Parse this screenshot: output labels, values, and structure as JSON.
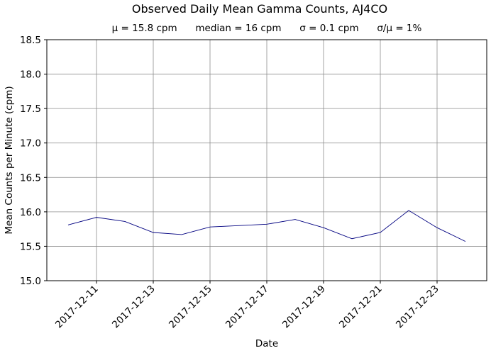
{
  "chart_data": {
    "type": "line",
    "title": "Observed Daily Mean Gamma Counts, AJ4CO",
    "subtitle": "μ = 15.8 cpm      median = 16 cpm      σ = 0.1 cpm      σ/μ = 1%",
    "xlabel": "Date",
    "ylabel": "Mean Counts per Minute (cpm)",
    "xlim": [
      "2017-12-09T06:00",
      "2017-12-24T18:00"
    ],
    "ylim": [
      15.0,
      18.5
    ],
    "yticks": [
      "15.0",
      "15.5",
      "16.0",
      "16.5",
      "17.0",
      "17.5",
      "18.0",
      "18.5"
    ],
    "xticks": [
      "2017-12-11",
      "2017-12-13",
      "2017-12-15",
      "2017-12-17",
      "2017-12-19",
      "2017-12-21",
      "2017-12-23"
    ],
    "grid": true,
    "line_color": "#000080",
    "series": [
      {
        "x": [
          "2017-12-10",
          "2017-12-11",
          "2017-12-12",
          "2017-12-13",
          "2017-12-14",
          "2017-12-15",
          "2017-12-16",
          "2017-12-17",
          "2017-12-18",
          "2017-12-19",
          "2017-12-20",
          "2017-12-21",
          "2017-12-22",
          "2017-12-23",
          "2017-12-24"
        ],
        "values": [
          15.81,
          15.92,
          15.86,
          15.7,
          15.67,
          15.78,
          15.8,
          15.82,
          15.89,
          15.77,
          15.61,
          15.7,
          16.02,
          15.77,
          15.57
        ]
      }
    ]
  }
}
